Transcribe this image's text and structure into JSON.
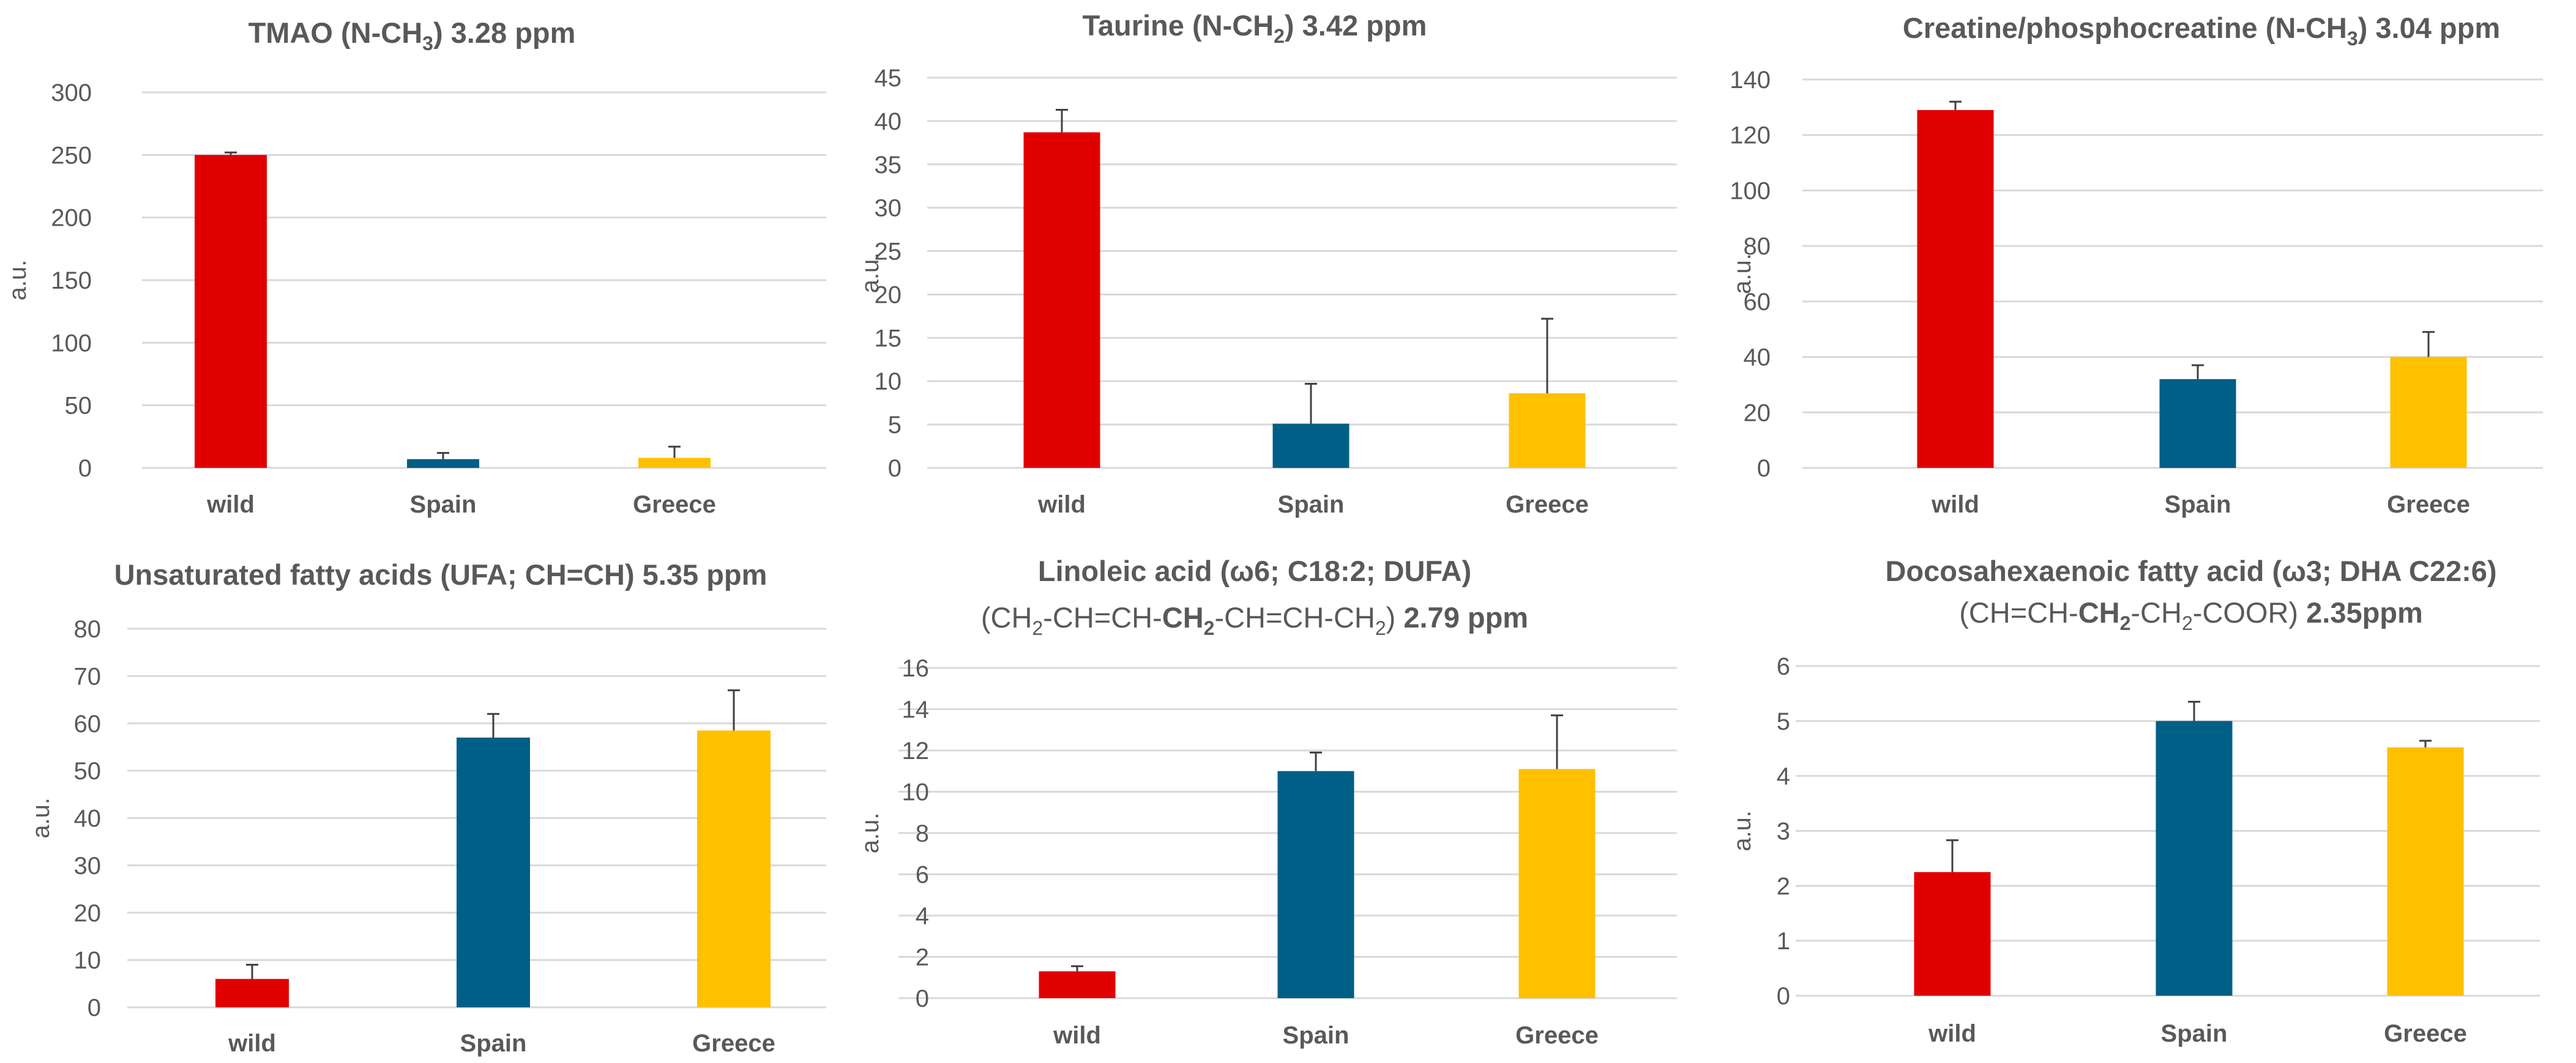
{
  "colors": {
    "wild": "#e00000",
    "Spain": "#005f86",
    "Greece": "#ffc000"
  },
  "chart_data": [
    {
      "type": "bar",
      "title_lines": [
        [
          {
            "t": "TMAO (N-CH"
          },
          {
            "t": "3",
            "sub": true
          },
          {
            "t": ") 3.28 ppm"
          }
        ]
      ],
      "ylabel": "a.u.",
      "categories": [
        "wild",
        "Spain",
        "Greece"
      ],
      "values": [
        250,
        7,
        8
      ],
      "errors": [
        2,
        5,
        9
      ],
      "ylim": [
        0,
        300
      ],
      "yticks": [
        0,
        50,
        100,
        150,
        200,
        250,
        300
      ]
    },
    {
      "type": "bar",
      "title_lines": [
        [
          {
            "t": "Taurine (N-CH"
          },
          {
            "t": "2",
            "sub": true
          },
          {
            "t": ") 3.42 ppm"
          }
        ]
      ],
      "ylabel": "a.u.",
      "categories": [
        "wild",
        "Spain",
        "Greece"
      ],
      "values": [
        38.7,
        5.1,
        8.6
      ],
      "errors": [
        2.6,
        4.6,
        8.6
      ],
      "ylim": [
        0,
        45
      ],
      "yticks": [
        0,
        5,
        10,
        15,
        20,
        25,
        30,
        35,
        40,
        45
      ]
    },
    {
      "type": "bar",
      "title_lines": [
        [
          {
            "t": "Creatine/phosphocreatine (N-CH"
          },
          {
            "t": "3",
            "sub": true
          },
          {
            "t": ") 3.04 ppm"
          }
        ]
      ],
      "ylabel": "a.u.",
      "categories": [
        "wild",
        "Spain",
        "Greece"
      ],
      "values": [
        129,
        32,
        40
      ],
      "errors": [
        3,
        5,
        9
      ],
      "ylim": [
        0,
        140
      ],
      "yticks": [
        0,
        20,
        40,
        60,
        80,
        100,
        120,
        140
      ]
    },
    {
      "type": "bar",
      "title_lines": [
        [
          {
            "t": "Unsaturated fatty acids (UFA; CH=CH) 5.35 ppm"
          }
        ]
      ],
      "ylabel": "a.u.",
      "categories": [
        "wild",
        "Spain",
        "Greece"
      ],
      "values": [
        6,
        57,
        58.5
      ],
      "errors": [
        3,
        5,
        8.5
      ],
      "ylim": [
        0,
        80
      ],
      "yticks": [
        0,
        10,
        20,
        30,
        40,
        50,
        60,
        70,
        80
      ]
    },
    {
      "type": "bar",
      "title_lines": [
        [
          {
            "t": "Linoleic acid (ω6; C18:2; DUFA)"
          }
        ],
        [
          {
            "t": "(CH",
            "n": true
          },
          {
            "t": "2",
            "sub": true,
            "n": true
          },
          {
            "t": "-CH=CH-",
            "n": true
          },
          {
            "t": "CH"
          },
          {
            "t": "2",
            "sub": true
          },
          {
            "t": "-CH=CH-CH",
            "n": true
          },
          {
            "t": "2",
            "sub": true,
            "n": true
          },
          {
            "t": ")",
            "n": true
          },
          {
            "t": " 2.79 ppm"
          }
        ]
      ],
      "ylabel": "a.u.",
      "categories": [
        "wild",
        "Spain",
        "Greece"
      ],
      "values": [
        1.3,
        11,
        11.1
      ],
      "errors": [
        0.25,
        0.9,
        2.6
      ],
      "ylim": [
        0,
        16
      ],
      "yticks": [
        0,
        2,
        4,
        6,
        8,
        10,
        12,
        14,
        16
      ]
    },
    {
      "type": "bar",
      "title_lines": [
        [
          {
            "t": "Docosahexaenoic fatty acid (ω3; DHA C22:6)"
          }
        ],
        [
          {
            "t": "(CH=CH-",
            "n": true
          },
          {
            "t": "CH"
          },
          {
            "t": "2",
            "sub": true
          },
          {
            "t": "-CH",
            "n": true
          },
          {
            "t": "2",
            "sub": true,
            "n": true
          },
          {
            "t": "-COOR)",
            "n": true
          },
          {
            "t": " 2.35ppm"
          }
        ]
      ],
      "ylabel": "a.u.",
      "categories": [
        "wild",
        "Spain",
        "Greece"
      ],
      "values": [
        2.25,
        5,
        4.52
      ],
      "errors": [
        0.58,
        0.35,
        0.12
      ],
      "ylim": [
        0,
        6
      ],
      "yticks": [
        0,
        1,
        2,
        3,
        4,
        5,
        6
      ]
    }
  ]
}
